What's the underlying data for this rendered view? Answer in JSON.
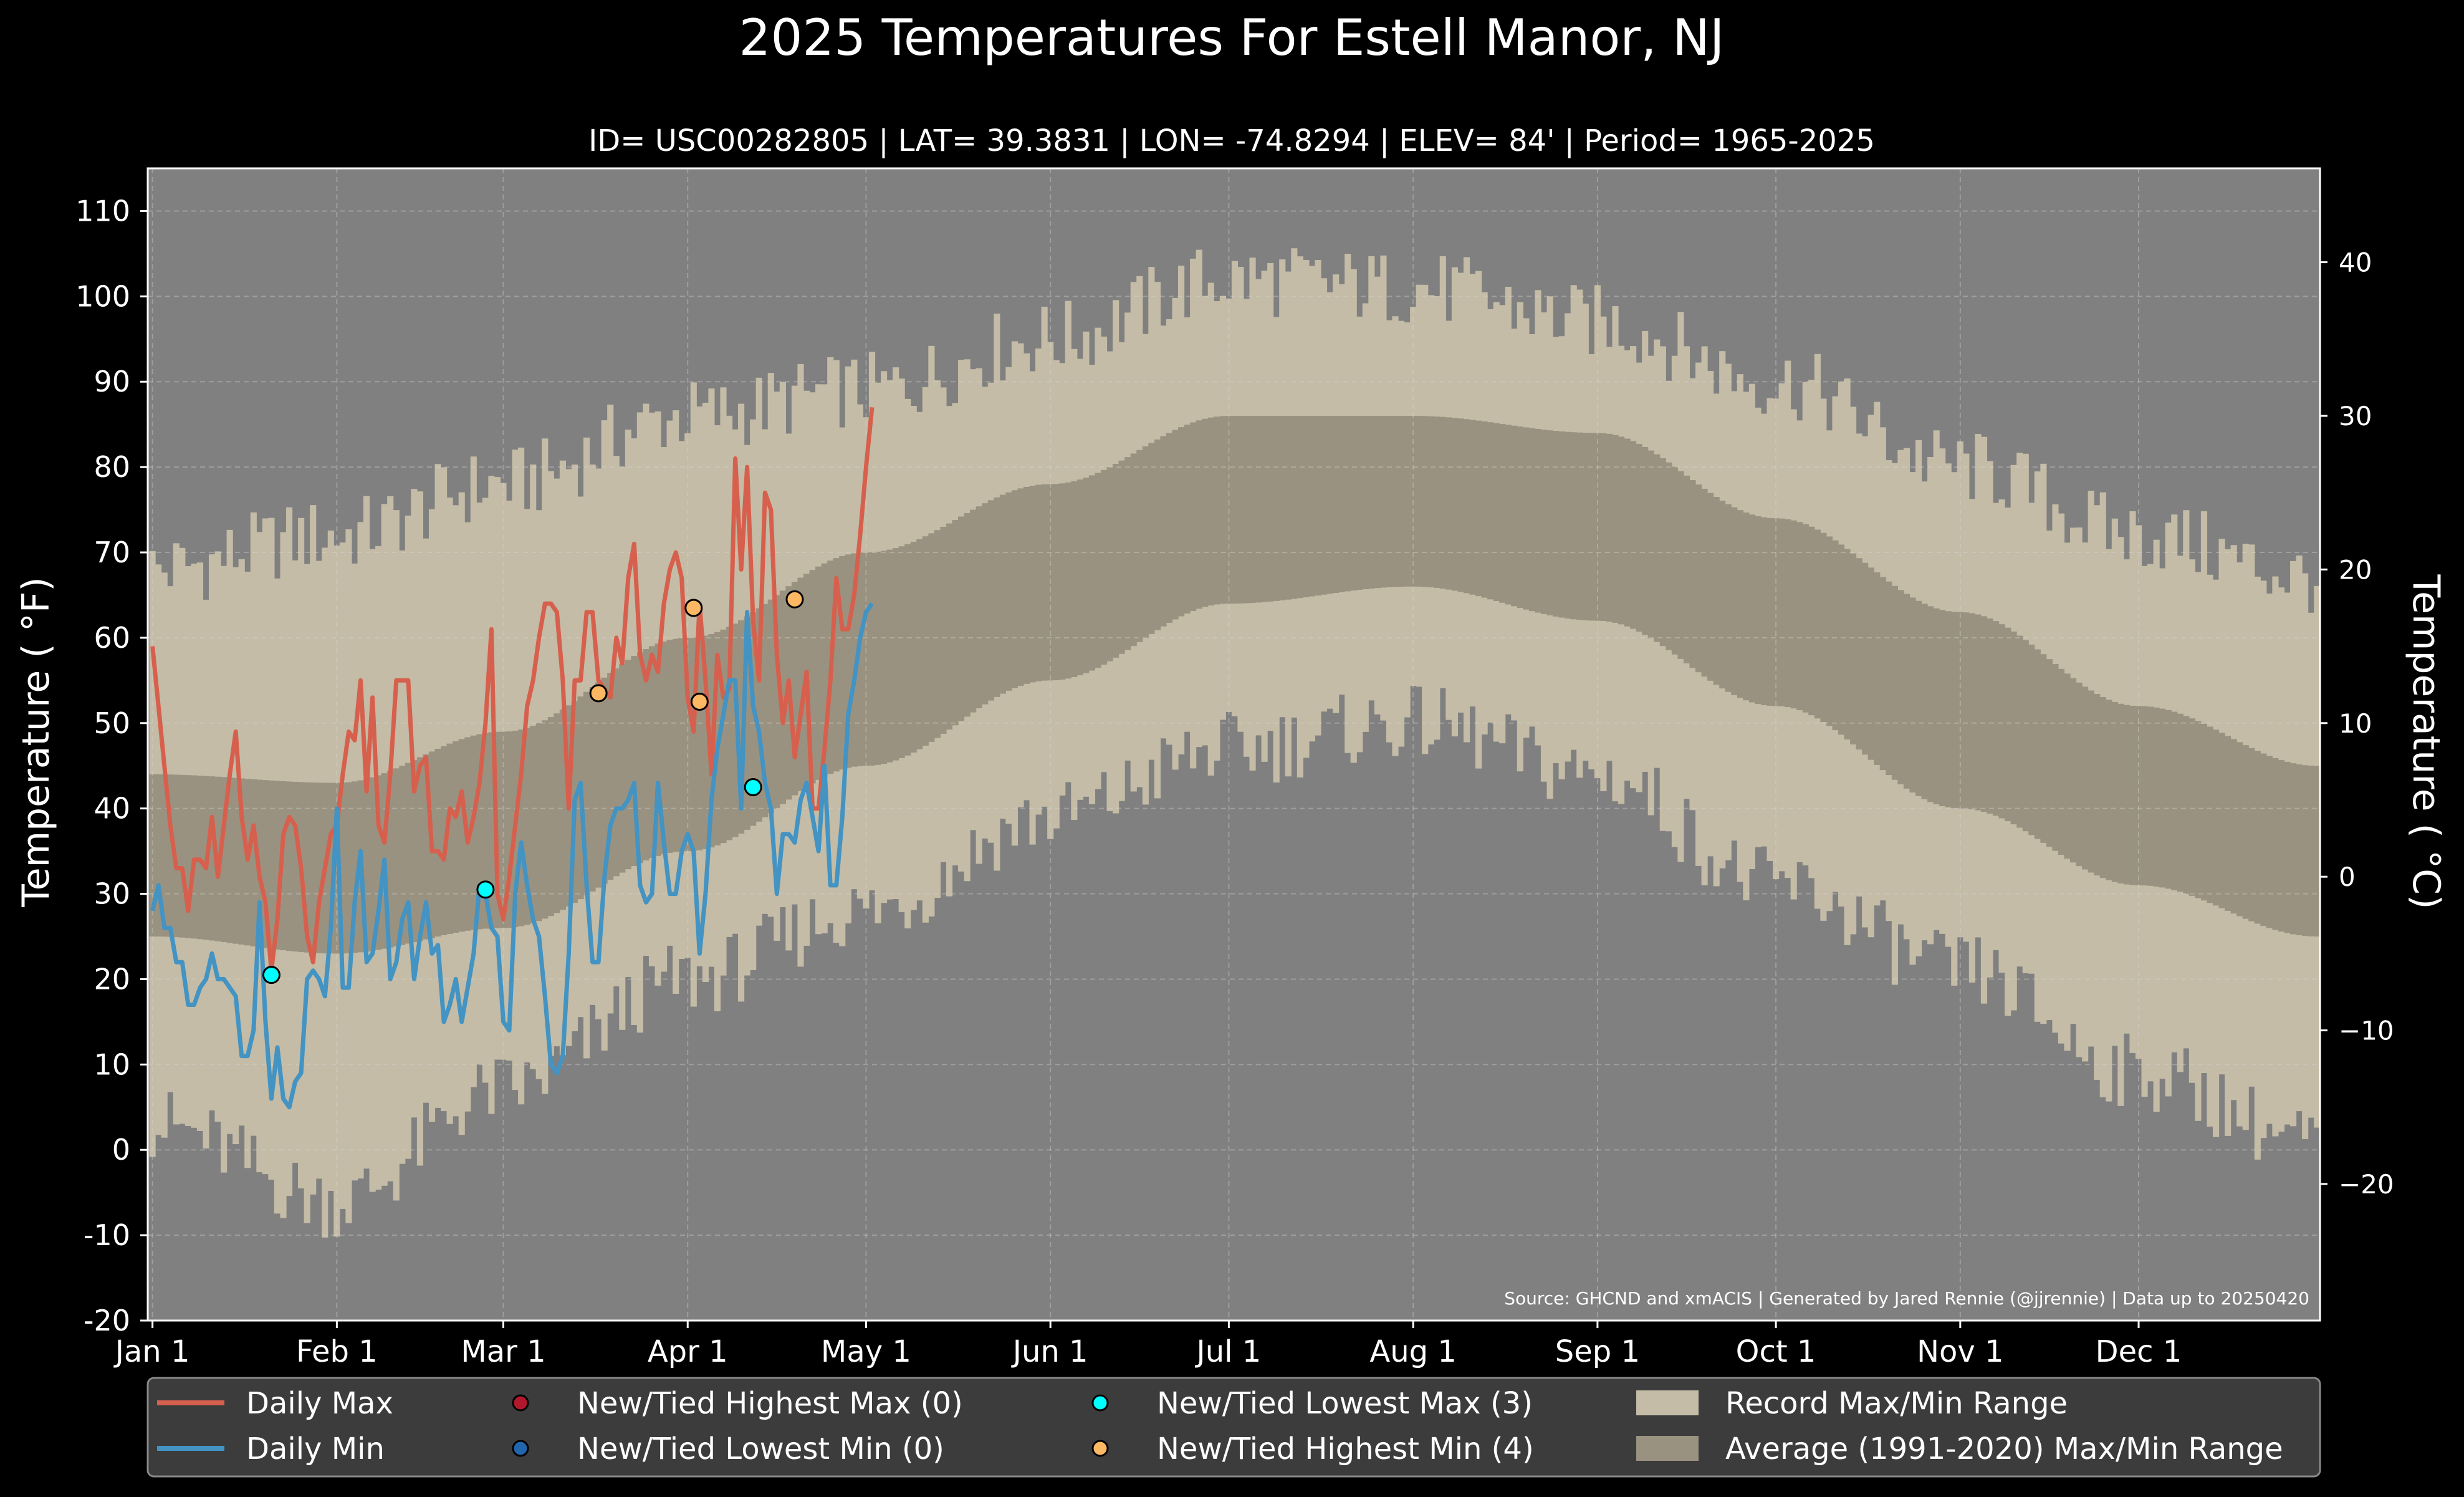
{
  "chart_data": {
    "type": "line",
    "title": "2025 Temperatures For Estell Manor, NJ",
    "subtitle": "ID= USC00282805 | LAT= 39.3831 | LON= -74.8294 | ELEV= 84' | Period= 1965-2025",
    "ylabel_left": "Temperature ( °F)",
    "ylabel_right": "Temperature ( °C)",
    "source": "Source: GHCND and xmACIS | Generated by Jared Rennie (@jjrennie) | Data up to 20250420",
    "x_range_doy": [
      1,
      365
    ],
    "ylim_f": [
      -20,
      115
    ],
    "yticks_f": [
      -20,
      -10,
      0,
      10,
      20,
      30,
      40,
      50,
      60,
      70,
      80,
      90,
      100,
      110
    ],
    "yticks_c": [
      -20,
      -10,
      0,
      10,
      20,
      30,
      40
    ],
    "xticks": [
      {
        "label": "Jan 1",
        "doy": 1
      },
      {
        "label": "Feb 1",
        "doy": 32
      },
      {
        "label": "Mar 1",
        "doy": 60
      },
      {
        "label": "Apr 1",
        "doy": 91
      },
      {
        "label": "May 1",
        "doy": 121
      },
      {
        "label": "Jun 1",
        "doy": 152
      },
      {
        "label": "Jul 1",
        "doy": 182
      },
      {
        "label": "Aug 1",
        "doy": 213
      },
      {
        "label": "Sep 1",
        "doy": 244
      },
      {
        "label": "Oct 1",
        "doy": 274
      },
      {
        "label": "Nov 1",
        "doy": 305
      },
      {
        "label": "Dec 1",
        "doy": 335
      }
    ],
    "grid": true,
    "colors": {
      "background": "#000000",
      "plot_bg": "#808080",
      "record_band": "#c4bca6",
      "normal_band": "#9a9280",
      "daily_max": "#d6604d",
      "daily_min": "#4393c3",
      "highest_max_marker": "#b2182b",
      "lowest_min_marker": "#2166ac",
      "lowest_max_marker": "#00ffff",
      "highest_min_marker": "#fdb863",
      "legend_bg": "#3c3c3c"
    },
    "record_max_monthly": {
      "doy": [
        1,
        32,
        60,
        91,
        121,
        152,
        182,
        213,
        244,
        274,
        305,
        335,
        365
      ],
      "values": [
        68,
        72,
        78,
        86,
        89,
        95,
        102,
        101,
        97,
        90,
        80,
        72,
        67
      ]
    },
    "record_min_monthly": {
      "doy": [
        1,
        32,
        60,
        91,
        121,
        152,
        182,
        213,
        244,
        274,
        305,
        335,
        365
      ],
      "values": [
        3,
        -6,
        7,
        20,
        28,
        39,
        47,
        50,
        44,
        31,
        21,
        9,
        1
      ]
    },
    "normal_max_monthly": {
      "doy": [
        1,
        32,
        60,
        91,
        121,
        152,
        182,
        213,
        244,
        274,
        305,
        335,
        365
      ],
      "values": [
        44,
        43,
        49,
        60,
        70,
        78,
        86,
        86,
        84,
        74,
        63,
        52,
        45
      ]
    },
    "normal_min_monthly": {
      "doy": [
        1,
        32,
        60,
        91,
        121,
        152,
        182,
        213,
        244,
        274,
        305,
        335,
        365
      ],
      "values": [
        25,
        23,
        26,
        35,
        45,
        55,
        64,
        66,
        62,
        52,
        40,
        31,
        25
      ]
    },
    "series": [
      {
        "name": "Daily Max",
        "doy_start": 1,
        "values": [
          59,
          52,
          45,
          38,
          33,
          33,
          28,
          34,
          34,
          33,
          39,
          32,
          38,
          44,
          49,
          39,
          34,
          38,
          32,
          29,
          21,
          27,
          37,
          39,
          38,
          33,
          25,
          22,
          29,
          33,
          37,
          38,
          44,
          49,
          48,
          55,
          42,
          53,
          38,
          36,
          44,
          55,
          55,
          55,
          42,
          45,
          46,
          35,
          35,
          34,
          40,
          39,
          42,
          36,
          39,
          43,
          50,
          61,
          30,
          27,
          32,
          38,
          44,
          52,
          55,
          60,
          64,
          64,
          63,
          55,
          40,
          55,
          55,
          63,
          63,
          55,
          54,
          53,
          60,
          57,
          67,
          71,
          58,
          55,
          58,
          56,
          64,
          68,
          70,
          67,
          53,
          49,
          64,
          55,
          44,
          58,
          53,
          54,
          81,
          68,
          80,
          62,
          55,
          77,
          75,
          58,
          50,
          55,
          46,
          51,
          56,
          40,
          40,
          47,
          55,
          67,
          61,
          61,
          65,
          72,
          80,
          87
        ]
      },
      {
        "name": "Daily Min",
        "doy_start": 1,
        "values": [
          28,
          31,
          26,
          26,
          22,
          22,
          17,
          17,
          19,
          20,
          23,
          20,
          20,
          19,
          18,
          11,
          11,
          14,
          29,
          15,
          6,
          12,
          6,
          5,
          8,
          9,
          20,
          21,
          20,
          18,
          26,
          40,
          19,
          19,
          29,
          35,
          22,
          23,
          28,
          34,
          20,
          22,
          27,
          29,
          20,
          25,
          29,
          23,
          24,
          15,
          17,
          20,
          15,
          19,
          23,
          31,
          30,
          26,
          25,
          15,
          14,
          30,
          36,
          31,
          27,
          25,
          18,
          10,
          9,
          11,
          23,
          41,
          43,
          31,
          22,
          22,
          32,
          38,
          40,
          40,
          41,
          43,
          31,
          29,
          30,
          43,
          36,
          30,
          30,
          35,
          37,
          35,
          23,
          30,
          41,
          47,
          51,
          55,
          55,
          40,
          63,
          52,
          49,
          43,
          40,
          30,
          37,
          37,
          36,
          41,
          43,
          39,
          35,
          45,
          31,
          31,
          39,
          51,
          55,
          60,
          63,
          64
        ]
      }
    ],
    "markers": [
      {
        "type": "lowest_max",
        "doy": 21,
        "value": 20.5
      },
      {
        "type": "lowest_max",
        "doy": 57,
        "value": 30.5
      },
      {
        "type": "lowest_max",
        "doy": 102,
        "value": 42.5
      },
      {
        "type": "highest_min",
        "doy": 76,
        "value": 53.5
      },
      {
        "type": "highest_min",
        "doy": 92,
        "value": 63.5
      },
      {
        "type": "highest_min",
        "doy": 93,
        "value": 52.5
      },
      {
        "type": "highest_min",
        "doy": 109,
        "value": 64.5
      }
    ],
    "legend": {
      "placement": "bottom",
      "entries": [
        {
          "label": "Daily Max",
          "kind": "line",
          "color": "#d6604d"
        },
        {
          "label": "Daily Min",
          "kind": "line",
          "color": "#4393c3"
        },
        {
          "label": "New/Tied Highest Max (0)",
          "kind": "marker",
          "color": "#b2182b"
        },
        {
          "label": "New/Tied Lowest Min (0)",
          "kind": "marker",
          "color": "#2166ac"
        },
        {
          "label": "New/Tied Lowest Max (3)",
          "kind": "marker",
          "color": "#00ffff"
        },
        {
          "label": "New/Tied Highest Min (4)",
          "kind": "marker",
          "color": "#fdb863"
        },
        {
          "label": "Record Max/Min Range",
          "kind": "patch",
          "color": "#c4bca6"
        },
        {
          "label": "Average (1991-2020) Max/Min Range",
          "kind": "patch",
          "color": "#9a9280"
        }
      ]
    }
  }
}
